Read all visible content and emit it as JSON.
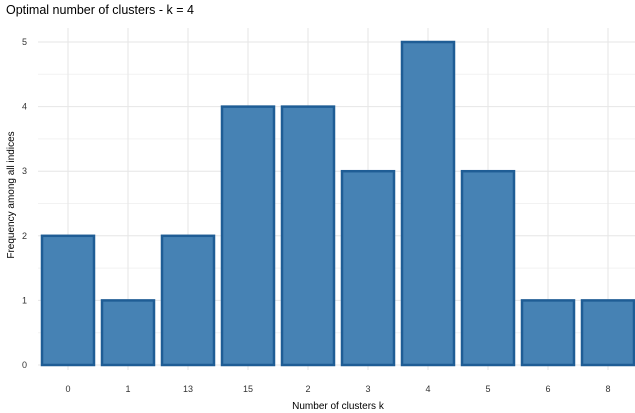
{
  "chart_data": {
    "type": "bar",
    "title": "Optimal number of clusters - k = 4",
    "xlabel": "Number of clusters k",
    "ylabel": "Frequency among all indices",
    "categories": [
      "0",
      "1",
      "13",
      "15",
      "2",
      "3",
      "4",
      "5",
      "6",
      "8"
    ],
    "values": [
      2,
      1,
      2,
      4,
      4,
      3,
      5,
      3,
      1,
      1
    ],
    "ylim": [
      0,
      5
    ],
    "yticks": [
      "0",
      "1",
      "2",
      "3",
      "4",
      "5"
    ],
    "grid": true,
    "colors": {
      "bar_fill": "#4682b4",
      "bar_edge": "#1f5d95"
    }
  }
}
